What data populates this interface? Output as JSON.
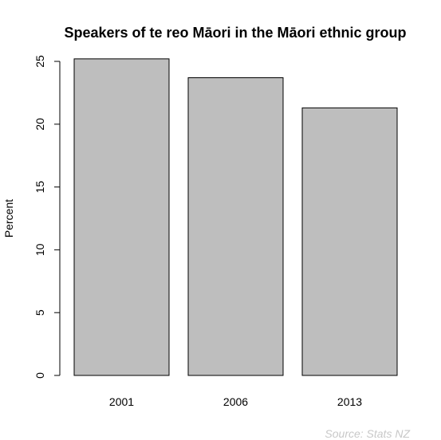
{
  "chart_data": {
    "type": "bar",
    "title": "Speakers of te reo Māori in the Māori ethnic group",
    "xlabel": "",
    "ylabel": "Percent",
    "categories": [
      "2001",
      "2006",
      "2013"
    ],
    "values": [
      25.2,
      23.7,
      21.3
    ],
    "ylim": [
      0,
      25
    ],
    "yticks": [
      "0",
      "5",
      "10",
      "15",
      "20",
      "25"
    ],
    "bar_color": "#bebebe",
    "grid": false,
    "legend": "none"
  },
  "source_note": "Source: Stats NZ",
  "colors": {
    "bar_fill": "#bebebe",
    "bar_stroke": "#000000",
    "source_text": "#c8c8c8"
  }
}
